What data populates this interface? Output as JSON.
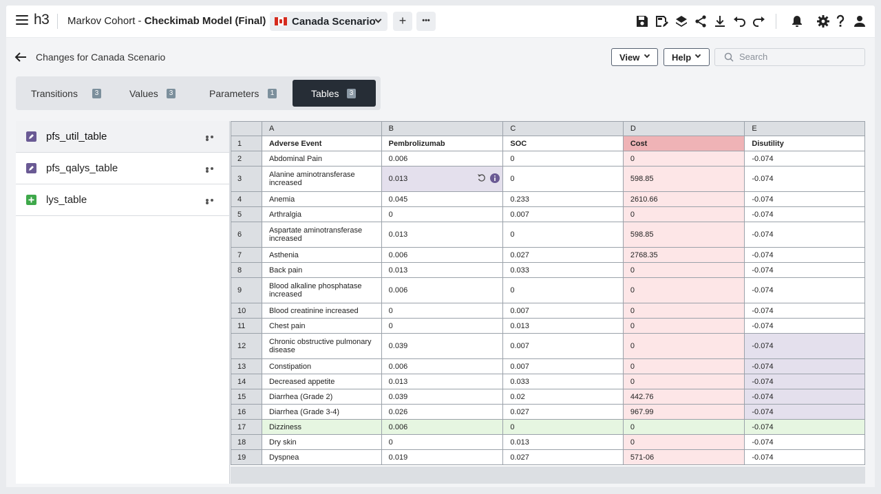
{
  "header": {
    "logo": "h3",
    "model_type": "Markov Cohort - ",
    "model_name": "Checkimab Model (Final)",
    "scenario": "Canada Scenario",
    "add_label": "+",
    "more_label": "•••"
  },
  "toolbar_icons": [
    "save-icon",
    "save-as-icon",
    "layers-icon",
    "share-icon",
    "download-icon",
    "undo-icon",
    "redo-icon",
    "bell-icon",
    "gear-icon",
    "help-icon",
    "user-icon"
  ],
  "page": {
    "title": "Changes for Canada Scenario",
    "view_label": "View",
    "help_label": "Help",
    "search_placeholder": "Search"
  },
  "tabs": [
    {
      "label": "Transitions",
      "count": "3",
      "active": false
    },
    {
      "label": "Values",
      "count": "3",
      "active": false
    },
    {
      "label": "Parameters",
      "count": "1",
      "active": false
    },
    {
      "label": "Tables",
      "count": "3",
      "active": true
    }
  ],
  "sidebar": {
    "items": [
      {
        "label": "pfs_util_table",
        "icon": "edited-table-icon",
        "selected": true
      },
      {
        "label": "pfs_qalys_table",
        "icon": "edited-table-icon",
        "selected": false
      },
      {
        "label": "lys_table",
        "icon": "added-table-icon",
        "selected": false
      }
    ]
  },
  "colors": {
    "edited_icon": "#6a5a94",
    "added_icon": "#3ea84a",
    "active_tab": "#262d36",
    "cost_header": "#efb3b6",
    "cost_cell": "#fde6e7",
    "edited_cell": "#e4e0ed",
    "added_row": "#e6f6e1"
  },
  "grid": {
    "columns": [
      "A",
      "B",
      "C",
      "D",
      "E"
    ],
    "header_row": {
      "num": "1",
      "cells": [
        "Adverse Event",
        "Pembrolizumab",
        "SOC",
        "Cost",
        "Disutility"
      ]
    },
    "rows": [
      {
        "num": "2",
        "cells": [
          "Abdominal Pain",
          "0.006",
          "0",
          "0",
          "-0.074"
        ]
      },
      {
        "num": "3",
        "cells": [
          "Alanine aminotransferase increased",
          "0.013",
          "0",
          "598.85",
          "-0.074"
        ]
      },
      {
        "num": "4",
        "cells": [
          "Anemia",
          "0.045",
          "0.233",
          "2610.66",
          "-0.074"
        ]
      },
      {
        "num": "5",
        "cells": [
          "Arthralgia",
          "0",
          "0.007",
          "0",
          "-0.074"
        ]
      },
      {
        "num": "6",
        "cells": [
          "Aspartate aminotransferase increased",
          "0.013",
          "0",
          "598.85",
          "-0.074"
        ]
      },
      {
        "num": "7",
        "cells": [
          "Asthenia",
          "0.006",
          "0.027",
          "2768.35",
          "-0.074"
        ]
      },
      {
        "num": "8",
        "cells": [
          "Back pain",
          "0.013",
          "0.033",
          "0",
          "-0.074"
        ]
      },
      {
        "num": "9",
        "cells": [
          "Blood alkaline phosphatase increased",
          "0.006",
          "0",
          "0",
          "-0.074"
        ]
      },
      {
        "num": "10",
        "cells": [
          "Blood creatinine increased",
          "0",
          "0.007",
          "0",
          "-0.074"
        ]
      },
      {
        "num": "11",
        "cells": [
          "Chest pain",
          "0",
          "0.013",
          "0",
          "-0.074"
        ]
      },
      {
        "num": "12",
        "cells": [
          "Chronic obstructive pulmonary disease",
          "0.039",
          "0.007",
          "0",
          "-0.074"
        ]
      },
      {
        "num": "13",
        "cells": [
          "Constipation",
          "0.006",
          "0.007",
          "0",
          "-0.074"
        ]
      },
      {
        "num": "14",
        "cells": [
          "Decreased appetite",
          "0.013",
          "0.033",
          "0",
          "-0.074"
        ]
      },
      {
        "num": "15",
        "cells": [
          "Diarrhea (Grade 2)",
          "0.039",
          "0.02",
          "442.76",
          "-0.074"
        ]
      },
      {
        "num": "16",
        "cells": [
          "Diarrhea (Grade 3-4)",
          "0.026",
          "0.027",
          "967.99",
          "-0.074"
        ]
      },
      {
        "num": "17",
        "cells": [
          "Dizziness",
          "0.006",
          "0",
          "0",
          "-0.074"
        ]
      },
      {
        "num": "18",
        "cells": [
          "Dry skin",
          "0",
          "0.013",
          "0",
          "-0.074"
        ]
      },
      {
        "num": "19",
        "cells": [
          "Dyspnea",
          "0.019",
          "0.027",
          "571-06",
          "-0.074"
        ]
      }
    ]
  }
}
